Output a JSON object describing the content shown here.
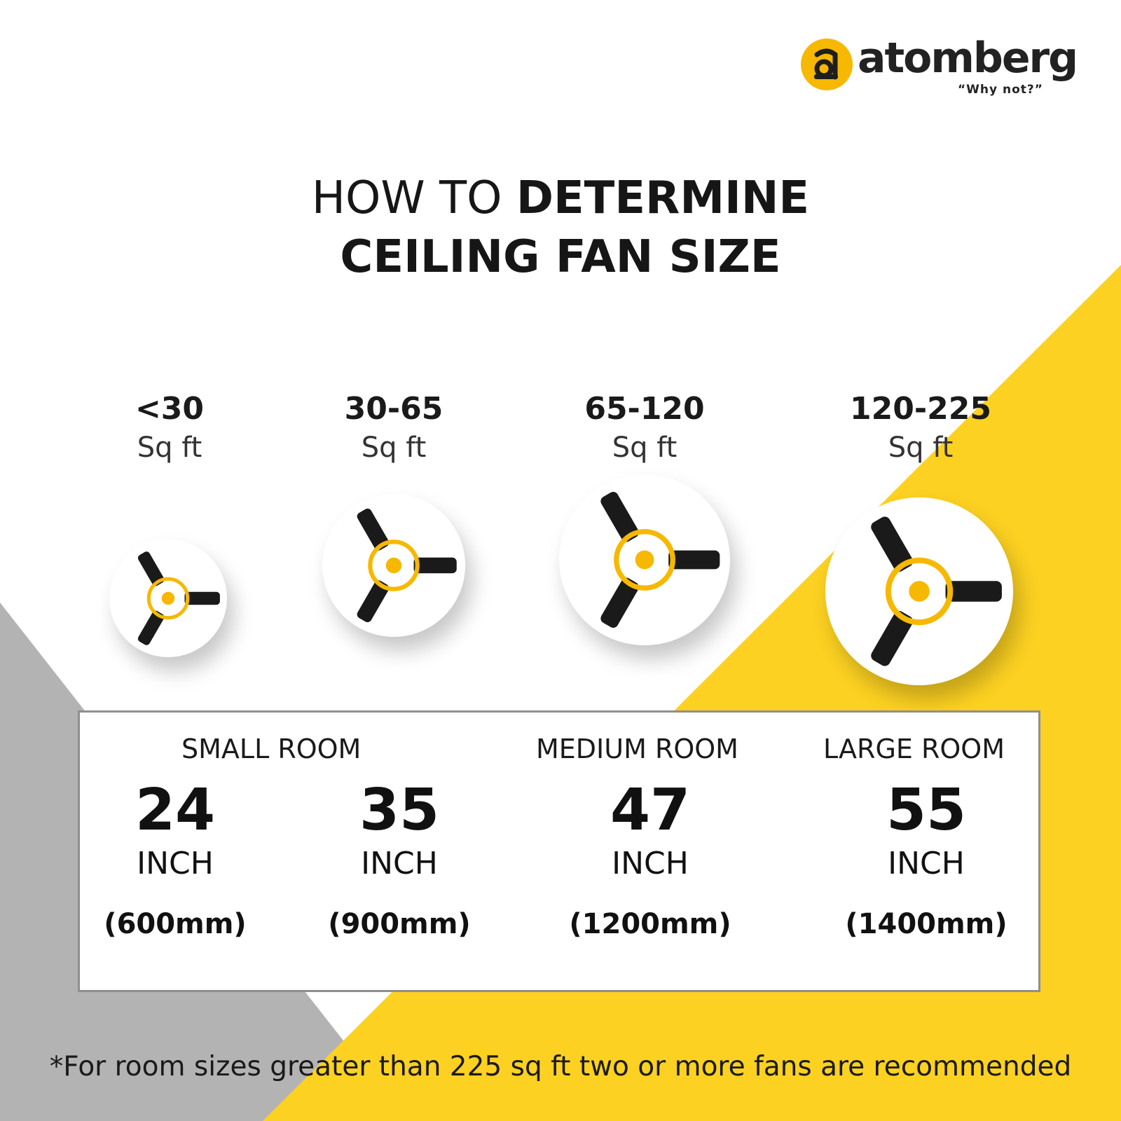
{
  "brand": {
    "name": "atomberg",
    "tagline": "“Why not?”",
    "logo_icon": "atomberg-logo-icon",
    "color": "#f6b800"
  },
  "title": {
    "line1_prefix": "HOW TO ",
    "line1_emphasis": "DETERMINE",
    "line2": "CEILING FAN SIZE"
  },
  "colors": {
    "yellow": "#fcd121",
    "grey": "#b3b3b3",
    "fan_blade": "#1a1a1a",
    "fan_ring": "#f6b800"
  },
  "areas": [
    {
      "range": "<30",
      "unit": "Sq ft"
    },
    {
      "range": "30-65",
      "unit": "Sq ft"
    },
    {
      "range": "65-120",
      "unit": "Sq ft"
    },
    {
      "range": "120-225",
      "unit": "Sq ft"
    }
  ],
  "fan_icon": "ceiling-fan-icon",
  "rooms": {
    "small": "SMALL ROOM",
    "medium": "MEDIUM ROOM",
    "large": "LARGE ROOM"
  },
  "sizes": [
    {
      "inch": "24",
      "inch_label": "INCH",
      "mm": "(600mm)"
    },
    {
      "inch": "35",
      "inch_label": "INCH",
      "mm": "(900mm)"
    },
    {
      "inch": "47",
      "inch_label": "INCH",
      "mm": "(1200mm)"
    },
    {
      "inch": "55",
      "inch_label": "INCH",
      "mm": "(1400mm)"
    }
  ],
  "footnote": "*For room sizes greater than 225 sq ft two or more fans are recommended"
}
